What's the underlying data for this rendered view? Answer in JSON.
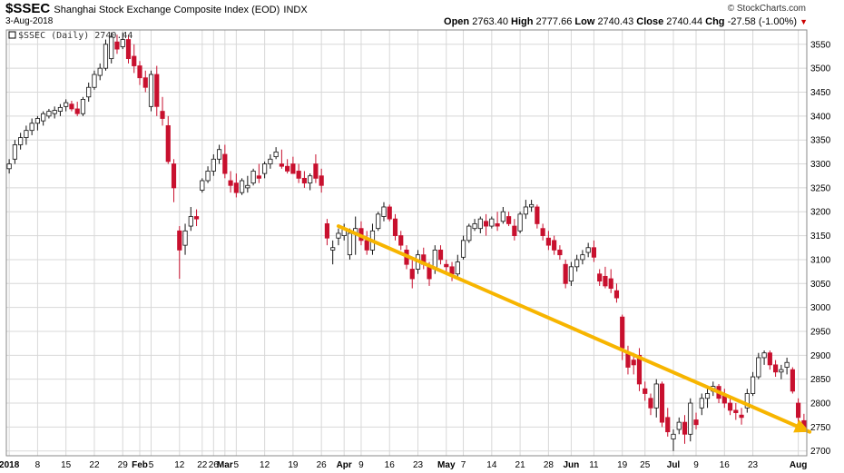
{
  "header": {
    "symbol": "$SSEC",
    "name": "Shanghai Stock Exchange Composite Index (EOD)",
    "exchange": "INDX",
    "date": "3-Aug-2018",
    "brand": "© StockCharts.com",
    "open_label": "Open",
    "open": "2763.40",
    "high_label": "High",
    "high": "2777.66",
    "low_label": "Low",
    "low": "2740.43",
    "close_label": "Close",
    "close": "2740.44",
    "chg_label": "Chg",
    "chg": "-27.58 (-1.00%)"
  },
  "legend": "$SSEC (Daily) 2740.44",
  "chart_data": {
    "type": "candlestick",
    "ylim": [
      2690,
      3580
    ],
    "y_ticks": [
      2700,
      2750,
      2800,
      2850,
      2900,
      2950,
      3000,
      3050,
      3100,
      3150,
      3200,
      3250,
      3300,
      3350,
      3400,
      3450,
      3500,
      3550
    ],
    "x_labels": [
      {
        "label": "2018",
        "i": 0,
        "bold": true
      },
      {
        "label": "8",
        "i": 5
      },
      {
        "label": "15",
        "i": 10
      },
      {
        "label": "22",
        "i": 15
      },
      {
        "label": "29",
        "i": 20
      },
      {
        "label": "Feb",
        "i": 23,
        "bold": true
      },
      {
        "label": "5",
        "i": 25
      },
      {
        "label": "12",
        "i": 30
      },
      {
        "label": "22",
        "i": 34
      },
      {
        "label": "26",
        "i": 36
      },
      {
        "label": "Mar",
        "i": 38,
        "bold": true
      },
      {
        "label": "5",
        "i": 40
      },
      {
        "label": "12",
        "i": 45
      },
      {
        "label": "19",
        "i": 50
      },
      {
        "label": "26",
        "i": 55
      },
      {
        "label": "Apr",
        "i": 59,
        "bold": true
      },
      {
        "label": "9",
        "i": 62
      },
      {
        "label": "16",
        "i": 67
      },
      {
        "label": "23",
        "i": 72
      },
      {
        "label": "May",
        "i": 77,
        "bold": true
      },
      {
        "label": "7",
        "i": 80
      },
      {
        "label": "14",
        "i": 85
      },
      {
        "label": "21",
        "i": 90
      },
      {
        "label": "28",
        "i": 95
      },
      {
        "label": "Jun",
        "i": 99,
        "bold": true
      },
      {
        "label": "11",
        "i": 103
      },
      {
        "label": "19",
        "i": 108
      },
      {
        "label": "25",
        "i": 112
      },
      {
        "label": "Jul",
        "i": 117,
        "bold": true
      },
      {
        "label": "9",
        "i": 121
      },
      {
        "label": "16",
        "i": 126
      },
      {
        "label": "23",
        "i": 131
      },
      {
        "label": "Aug",
        "i": 139,
        "bold": true
      }
    ],
    "candles": [
      {
        "o": 3290,
        "h": 3310,
        "l": 3280,
        "c": 3300
      },
      {
        "o": 3310,
        "h": 3350,
        "l": 3300,
        "c": 3340
      },
      {
        "o": 3340,
        "h": 3365,
        "l": 3330,
        "c": 3355
      },
      {
        "o": 3355,
        "h": 3380,
        "l": 3340,
        "c": 3370
      },
      {
        "o": 3370,
        "h": 3395,
        "l": 3360,
        "c": 3385
      },
      {
        "o": 3385,
        "h": 3400,
        "l": 3370,
        "c": 3395
      },
      {
        "o": 3390,
        "h": 3410,
        "l": 3380,
        "c": 3405
      },
      {
        "o": 3400,
        "h": 3415,
        "l": 3395,
        "c": 3410
      },
      {
        "o": 3405,
        "h": 3420,
        "l": 3395,
        "c": 3412
      },
      {
        "o": 3410,
        "h": 3425,
        "l": 3400,
        "c": 3418
      },
      {
        "o": 3420,
        "h": 3435,
        "l": 3410,
        "c": 3428
      },
      {
        "o": 3425,
        "h": 3432,
        "l": 3410,
        "c": 3415
      },
      {
        "o": 3415,
        "h": 3430,
        "l": 3400,
        "c": 3405
      },
      {
        "o": 3405,
        "h": 3440,
        "l": 3400,
        "c": 3435
      },
      {
        "o": 3440,
        "h": 3470,
        "l": 3430,
        "c": 3460
      },
      {
        "o": 3460,
        "h": 3495,
        "l": 3455,
        "c": 3487
      },
      {
        "o": 3485,
        "h": 3510,
        "l": 3475,
        "c": 3500
      },
      {
        "o": 3500,
        "h": 3560,
        "l": 3495,
        "c": 3550
      },
      {
        "o": 3520,
        "h": 3575,
        "l": 3510,
        "c": 3565
      },
      {
        "o": 3555,
        "h": 3570,
        "l": 3530,
        "c": 3540
      },
      {
        "o": 3545,
        "h": 3575,
        "l": 3540,
        "c": 3560
      },
      {
        "o": 3560,
        "h": 3570,
        "l": 3510,
        "c": 3520
      },
      {
        "o": 3525,
        "h": 3550,
        "l": 3490,
        "c": 3505
      },
      {
        "o": 3505,
        "h": 3515,
        "l": 3465,
        "c": 3480
      },
      {
        "o": 3480,
        "h": 3495,
        "l": 3450,
        "c": 3460
      },
      {
        "o": 3420,
        "h": 3495,
        "l": 3410,
        "c": 3487
      },
      {
        "o": 3487,
        "h": 3505,
        "l": 3400,
        "c": 3420
      },
      {
        "o": 3410,
        "h": 3440,
        "l": 3380,
        "c": 3395
      },
      {
        "o": 3380,
        "h": 3400,
        "l": 3300,
        "c": 3305
      },
      {
        "o": 3300,
        "h": 3310,
        "l": 3220,
        "c": 3250
      },
      {
        "o": 3160,
        "h": 3170,
        "l": 3060,
        "c": 3120
      },
      {
        "o": 3130,
        "h": 3175,
        "l": 3110,
        "c": 3160
      },
      {
        "o": 3170,
        "h": 3210,
        "l": 3160,
        "c": 3190
      },
      {
        "o": 3190,
        "h": 3205,
        "l": 3170,
        "c": 3185
      },
      {
        "o": 3245,
        "h": 3270,
        "l": 3240,
        "c": 3265
      },
      {
        "o": 3265,
        "h": 3295,
        "l": 3260,
        "c": 3285
      },
      {
        "o": 3285,
        "h": 3320,
        "l": 3275,
        "c": 3310
      },
      {
        "o": 3310,
        "h": 3340,
        "l": 3300,
        "c": 3330
      },
      {
        "o": 3320,
        "h": 3340,
        "l": 3270,
        "c": 3280
      },
      {
        "o": 3265,
        "h": 3285,
        "l": 3240,
        "c": 3255
      },
      {
        "o": 3260,
        "h": 3280,
        "l": 3230,
        "c": 3240
      },
      {
        "o": 3240,
        "h": 3270,
        "l": 3235,
        "c": 3265
      },
      {
        "o": 3250,
        "h": 3275,
        "l": 3240,
        "c": 3255
      },
      {
        "o": 3260,
        "h": 3290,
        "l": 3255,
        "c": 3285
      },
      {
        "o": 3275,
        "h": 3300,
        "l": 3260,
        "c": 3270
      },
      {
        "o": 3280,
        "h": 3305,
        "l": 3270,
        "c": 3300
      },
      {
        "o": 3300,
        "h": 3320,
        "l": 3290,
        "c": 3310
      },
      {
        "o": 3315,
        "h": 3335,
        "l": 3310,
        "c": 3325
      },
      {
        "o": 3300,
        "h": 3330,
        "l": 3290,
        "c": 3295
      },
      {
        "o": 3295,
        "h": 3310,
        "l": 3280,
        "c": 3285
      },
      {
        "o": 3300,
        "h": 3315,
        "l": 3280,
        "c": 3280
      },
      {
        "o": 3285,
        "h": 3300,
        "l": 3260,
        "c": 3270
      },
      {
        "o": 3270,
        "h": 3285,
        "l": 3250,
        "c": 3260
      },
      {
        "o": 3260,
        "h": 3280,
        "l": 3245,
        "c": 3275
      },
      {
        "o": 3300,
        "h": 3320,
        "l": 3260,
        "c": 3270
      },
      {
        "o": 3275,
        "h": 3290,
        "l": 3240,
        "c": 3255
      },
      {
        "o": 3175,
        "h": 3185,
        "l": 3130,
        "c": 3145
      },
      {
        "o": 3120,
        "h": 3140,
        "l": 3090,
        "c": 3125
      },
      {
        "o": 3145,
        "h": 3165,
        "l": 3130,
        "c": 3155
      },
      {
        "o": 3150,
        "h": 3175,
        "l": 3140,
        "c": 3165
      },
      {
        "o": 3110,
        "h": 3165,
        "l": 3100,
        "c": 3155
      },
      {
        "o": 3155,
        "h": 3190,
        "l": 3110,
        "c": 3165
      },
      {
        "o": 3165,
        "h": 3180,
        "l": 3130,
        "c": 3140
      },
      {
        "o": 3140,
        "h": 3160,
        "l": 3110,
        "c": 3120
      },
      {
        "o": 3120,
        "h": 3175,
        "l": 3110,
        "c": 3160
      },
      {
        "o": 3165,
        "h": 3200,
        "l": 3160,
        "c": 3195
      },
      {
        "o": 3190,
        "h": 3220,
        "l": 3180,
        "c": 3210
      },
      {
        "o": 3210,
        "h": 3215,
        "l": 3180,
        "c": 3185
      },
      {
        "o": 3185,
        "h": 3195,
        "l": 3140,
        "c": 3150
      },
      {
        "o": 3150,
        "h": 3160,
        "l": 3120,
        "c": 3130
      },
      {
        "o": 3120,
        "h": 3130,
        "l": 3080,
        "c": 3090
      },
      {
        "o": 3080,
        "h": 3100,
        "l": 3040,
        "c": 3060
      },
      {
        "o": 3080,
        "h": 3120,
        "l": 3070,
        "c": 3110
      },
      {
        "o": 3110,
        "h": 3125,
        "l": 3080,
        "c": 3090
      },
      {
        "o": 3085,
        "h": 3095,
        "l": 3045,
        "c": 3060
      },
      {
        "o": 3080,
        "h": 3130,
        "l": 3070,
        "c": 3120
      },
      {
        "o": 3120,
        "h": 3130,
        "l": 3090,
        "c": 3100
      },
      {
        "o": 3090,
        "h": 3100,
        "l": 3070,
        "c": 3085
      },
      {
        "o": 3085,
        "h": 3095,
        "l": 3055,
        "c": 3070
      },
      {
        "o": 3070,
        "h": 3110,
        "l": 3060,
        "c": 3095
      },
      {
        "o": 3105,
        "h": 3150,
        "l": 3100,
        "c": 3140
      },
      {
        "o": 3140,
        "h": 3175,
        "l": 3135,
        "c": 3170
      },
      {
        "o": 3165,
        "h": 3185,
        "l": 3160,
        "c": 3175
      },
      {
        "o": 3165,
        "h": 3190,
        "l": 3155,
        "c": 3185
      },
      {
        "o": 3180,
        "h": 3195,
        "l": 3150,
        "c": 3170
      },
      {
        "o": 3170,
        "h": 3190,
        "l": 3165,
        "c": 3185
      },
      {
        "o": 3175,
        "h": 3200,
        "l": 3160,
        "c": 3170
      },
      {
        "o": 3180,
        "h": 3210,
        "l": 3175,
        "c": 3200
      },
      {
        "o": 3190,
        "h": 3200,
        "l": 3170,
        "c": 3175
      },
      {
        "o": 3170,
        "h": 3185,
        "l": 3140,
        "c": 3150
      },
      {
        "o": 3160,
        "h": 3200,
        "l": 3155,
        "c": 3195
      },
      {
        "o": 3195,
        "h": 3225,
        "l": 3185,
        "c": 3210
      },
      {
        "o": 3210,
        "h": 3225,
        "l": 3200,
        "c": 3215
      },
      {
        "o": 3210,
        "h": 3215,
        "l": 3165,
        "c": 3175
      },
      {
        "o": 3165,
        "h": 3175,
        "l": 3140,
        "c": 3150
      },
      {
        "o": 3145,
        "h": 3160,
        "l": 3120,
        "c": 3130
      },
      {
        "o": 3140,
        "h": 3150,
        "l": 3110,
        "c": 3120
      },
      {
        "o": 3120,
        "h": 3130,
        "l": 3100,
        "c": 3110
      },
      {
        "o": 3090,
        "h": 3100,
        "l": 3040,
        "c": 3050
      },
      {
        "o": 3055,
        "h": 3095,
        "l": 3045,
        "c": 3085
      },
      {
        "o": 3085,
        "h": 3110,
        "l": 3075,
        "c": 3100
      },
      {
        "o": 3100,
        "h": 3120,
        "l": 3090,
        "c": 3110
      },
      {
        "o": 3115,
        "h": 3135,
        "l": 3105,
        "c": 3125
      },
      {
        "o": 3125,
        "h": 3140,
        "l": 3095,
        "c": 3105
      },
      {
        "o": 3070,
        "h": 3080,
        "l": 3045,
        "c": 3055
      },
      {
        "o": 3065,
        "h": 3085,
        "l": 3040,
        "c": 3045
      },
      {
        "o": 3060,
        "h": 3080,
        "l": 3030,
        "c": 3040
      },
      {
        "o": 3035,
        "h": 3050,
        "l": 3010,
        "c": 3020
      },
      {
        "o": 2980,
        "h": 2985,
        "l": 2890,
        "c": 2915
      },
      {
        "o": 2905,
        "h": 2920,
        "l": 2860,
        "c": 2875
      },
      {
        "o": 2890,
        "h": 2905,
        "l": 2860,
        "c": 2880
      },
      {
        "o": 2900,
        "h": 2915,
        "l": 2825,
        "c": 2840
      },
      {
        "o": 2830,
        "h": 2845,
        "l": 2805,
        "c": 2820
      },
      {
        "o": 2810,
        "h": 2820,
        "l": 2775,
        "c": 2790
      },
      {
        "o": 2790,
        "h": 2850,
        "l": 2770,
        "c": 2840
      },
      {
        "o": 2840,
        "h": 2845,
        "l": 2750,
        "c": 2760
      },
      {
        "o": 2770,
        "h": 2790,
        "l": 2730,
        "c": 2740
      },
      {
        "o": 2725,
        "h": 2745,
        "l": 2700,
        "c": 2735
      },
      {
        "o": 2745,
        "h": 2770,
        "l": 2735,
        "c": 2760
      },
      {
        "o": 2760,
        "h": 2775,
        "l": 2715,
        "c": 2735
      },
      {
        "o": 2735,
        "h": 2810,
        "l": 2720,
        "c": 2800
      },
      {
        "o": 2765,
        "h": 2780,
        "l": 2745,
        "c": 2755
      },
      {
        "o": 2790,
        "h": 2820,
        "l": 2775,
        "c": 2810
      },
      {
        "o": 2810,
        "h": 2830,
        "l": 2790,
        "c": 2820
      },
      {
        "o": 2825,
        "h": 2845,
        "l": 2815,
        "c": 2835
      },
      {
        "o": 2835,
        "h": 2840,
        "l": 2800,
        "c": 2810
      },
      {
        "o": 2815,
        "h": 2830,
        "l": 2790,
        "c": 2800
      },
      {
        "o": 2800,
        "h": 2815,
        "l": 2775,
        "c": 2785
      },
      {
        "o": 2785,
        "h": 2800,
        "l": 2765,
        "c": 2780
      },
      {
        "o": 2775,
        "h": 2790,
        "l": 2755,
        "c": 2770
      },
      {
        "o": 2790,
        "h": 2830,
        "l": 2780,
        "c": 2820
      },
      {
        "o": 2820,
        "h": 2865,
        "l": 2815,
        "c": 2855
      },
      {
        "o": 2855,
        "h": 2905,
        "l": 2850,
        "c": 2895
      },
      {
        "o": 2895,
        "h": 2910,
        "l": 2880,
        "c": 2905
      },
      {
        "o": 2905,
        "h": 2910,
        "l": 2870,
        "c": 2880
      },
      {
        "o": 2880,
        "h": 2890,
        "l": 2855,
        "c": 2865
      },
      {
        "o": 2865,
        "h": 2880,
        "l": 2850,
        "c": 2870
      },
      {
        "o": 2875,
        "h": 2895,
        "l": 2860,
        "c": 2885
      },
      {
        "o": 2870,
        "h": 2875,
        "l": 2820,
        "c": 2825
      },
      {
        "o": 2800,
        "h": 2810,
        "l": 2760,
        "c": 2770
      },
      {
        "o": 2763.4,
        "h": 2777.66,
        "l": 2740.43,
        "c": 2740.44
      }
    ],
    "trendline": {
      "from": {
        "i": 58,
        "v": 3170
      },
      "to": {
        "i": 141,
        "v": 2740
      }
    },
    "colors": {
      "up": "#ffffff",
      "down": "#c8102e",
      "outline": "#111111",
      "trend": "#f7b500",
      "grid": "#d8d8d8"
    }
  }
}
